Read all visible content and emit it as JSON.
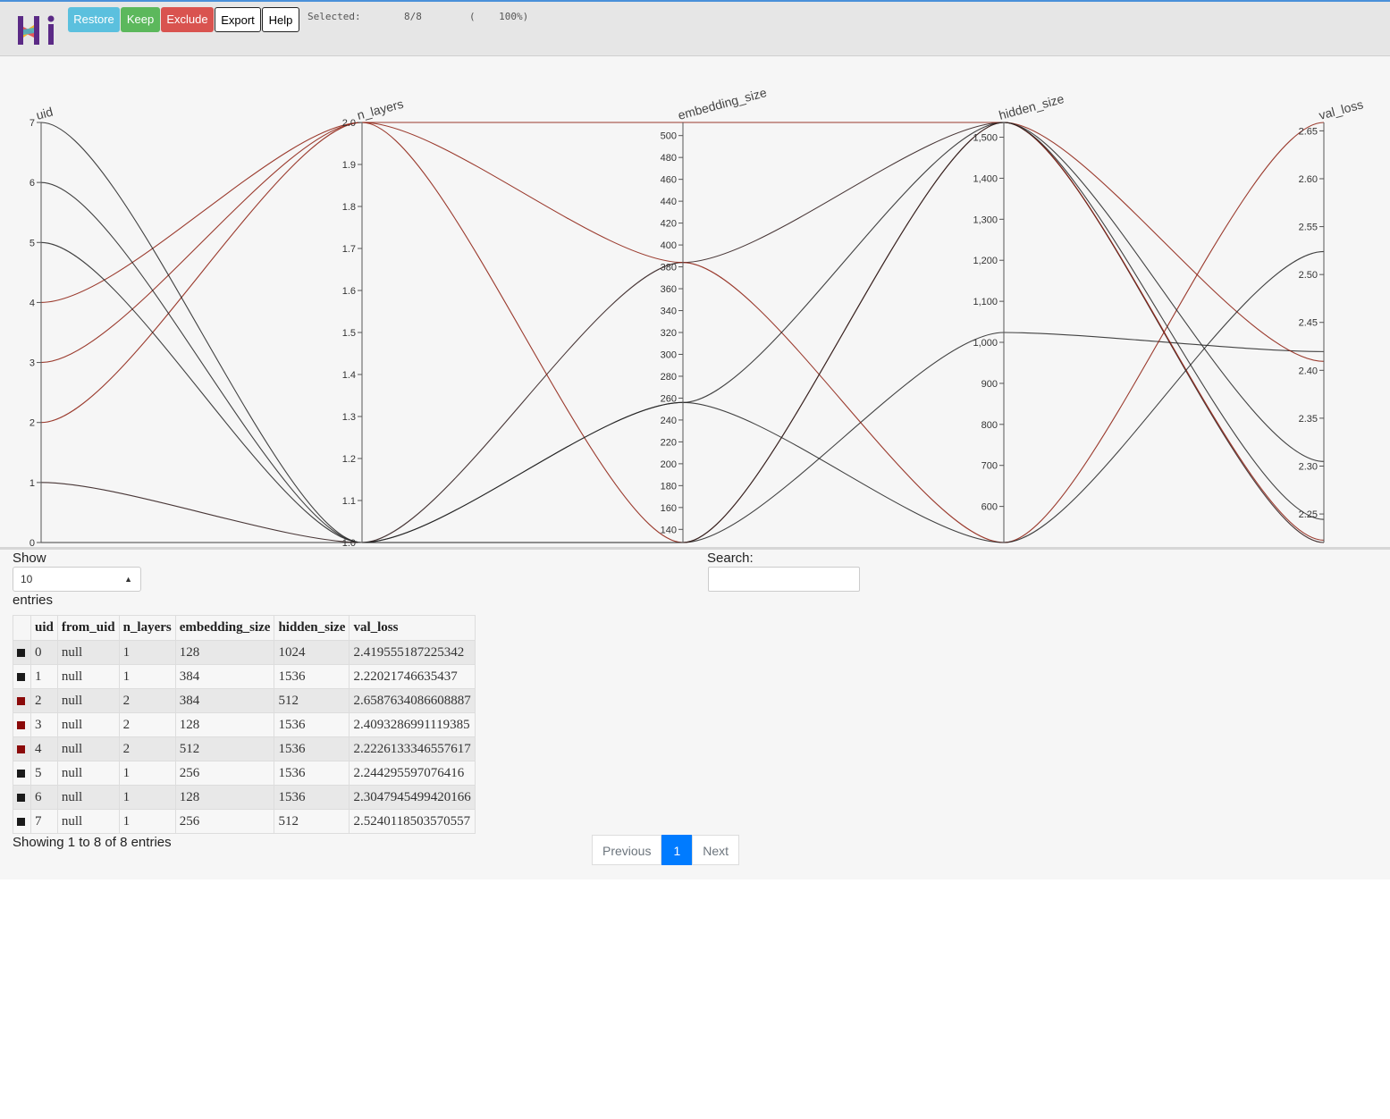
{
  "toolbar": {
    "restore_label": "Restore",
    "keep_label": "Keep",
    "exclude_label": "Exclude",
    "export_label": "Export",
    "help_label": "Help"
  },
  "selection": {
    "label": "Selected:",
    "count": "8/8",
    "percent": "(    100%)"
  },
  "colors": {
    "accent_restore": "#5bc0de",
    "accent_keep": "#5cb85c",
    "accent_exclude": "#d9534f",
    "pager_active": "#007bff"
  },
  "chart_data": {
    "type": "parallel_coordinates",
    "axes": [
      {
        "name": "uid",
        "range": [
          0,
          7
        ],
        "ticks": [
          "0",
          "1",
          "2",
          "3",
          "4",
          "5",
          "6",
          "7"
        ]
      },
      {
        "name": "n_layers",
        "range": [
          1.0,
          2.0
        ],
        "ticks": [
          "1.0",
          "1.1",
          "1.2",
          "1.3",
          "1.4",
          "1.5",
          "1.6",
          "1.7",
          "1.8",
          "1.9",
          "2.0"
        ]
      },
      {
        "name": "embedding_size",
        "range": [
          128,
          512
        ],
        "ticks": [
          "140",
          "160",
          "180",
          "200",
          "220",
          "240",
          "260",
          "280",
          "300",
          "320",
          "340",
          "360",
          "380",
          "400",
          "420",
          "440",
          "460",
          "480",
          "500"
        ]
      },
      {
        "name": "hidden_size",
        "range": [
          512,
          1536
        ],
        "ticks": [
          "600",
          "700",
          "800",
          "900",
          "1,000",
          "1,100",
          "1,200",
          "1,300",
          "1,400",
          "1,500"
        ]
      },
      {
        "name": "val_loss",
        "range": [
          2.22021746635437,
          2.6587634086608887
        ],
        "ticks": [
          "2.25",
          "2.30",
          "2.35",
          "2.40",
          "2.45",
          "2.50",
          "2.55",
          "2.60",
          "2.65"
        ]
      }
    ],
    "rows": [
      {
        "uid": 0,
        "n_layers": 1,
        "embedding_size": 128,
        "hidden_size": 1024,
        "val_loss": 2.419555187225342,
        "color": "#222222"
      },
      {
        "uid": 1,
        "n_layers": 1,
        "embedding_size": 384,
        "hidden_size": 1536,
        "val_loss": 2.22021746635437,
        "color": "#2a1515"
      },
      {
        "uid": 2,
        "n_layers": 2,
        "embedding_size": 384,
        "hidden_size": 512,
        "val_loss": 2.6587634086608887,
        "color": "#8b1a0a"
      },
      {
        "uid": 3,
        "n_layers": 2,
        "embedding_size": 128,
        "hidden_size": 1536,
        "val_loss": 2.4093286991119385,
        "color": "#8b1a0a"
      },
      {
        "uid": 4,
        "n_layers": 2,
        "embedding_size": 512,
        "hidden_size": 1536,
        "val_loss": 2.2226133346557617,
        "color": "#8b1a0a"
      },
      {
        "uid": 5,
        "n_layers": 1,
        "embedding_size": 256,
        "hidden_size": 1536,
        "val_loss": 2.244295597076416,
        "color": "#222222"
      },
      {
        "uid": 6,
        "n_layers": 1,
        "embedding_size": 128,
        "hidden_size": 1536,
        "val_loss": 2.3047945499420166,
        "color": "#222222"
      },
      {
        "uid": 7,
        "n_layers": 1,
        "embedding_size": 256,
        "hidden_size": 512,
        "val_loss": 2.5240118503570557,
        "color": "#222222"
      }
    ]
  },
  "table": {
    "show_label": "Show",
    "entries_label": "entries",
    "page_size": "10",
    "search_label": "Search:",
    "search_value": "",
    "columns": [
      "uid",
      "from_uid",
      "n_layers",
      "embedding_size",
      "hidden_size",
      "val_loss"
    ],
    "rows": [
      {
        "color": "#1a1a1a",
        "cells": [
          "0",
          "null",
          "1",
          "128",
          "1024",
          "2.419555187225342"
        ]
      },
      {
        "color": "#1a1a1a",
        "cells": [
          "1",
          "null",
          "1",
          "384",
          "1536",
          "2.22021746635437"
        ]
      },
      {
        "color": "#8b0a0a",
        "cells": [
          "2",
          "null",
          "2",
          "384",
          "512",
          "2.6587634086608887"
        ]
      },
      {
        "color": "#8b0a0a",
        "cells": [
          "3",
          "null",
          "2",
          "128",
          "1536",
          "2.4093286991119385"
        ]
      },
      {
        "color": "#8b0a0a",
        "cells": [
          "4",
          "null",
          "2",
          "512",
          "1536",
          "2.2226133346557617"
        ]
      },
      {
        "color": "#1a1a1a",
        "cells": [
          "5",
          "null",
          "1",
          "256",
          "1536",
          "2.244295597076416"
        ]
      },
      {
        "color": "#1a1a1a",
        "cells": [
          "6",
          "null",
          "1",
          "128",
          "1536",
          "2.3047945499420166"
        ]
      },
      {
        "color": "#1a1a1a",
        "cells": [
          "7",
          "null",
          "1",
          "256",
          "512",
          "2.5240118503570557"
        ]
      }
    ],
    "info": "Showing 1 to 8 of 8 entries"
  },
  "pagination": {
    "previous": "Previous",
    "current": "1",
    "next": "Next"
  }
}
